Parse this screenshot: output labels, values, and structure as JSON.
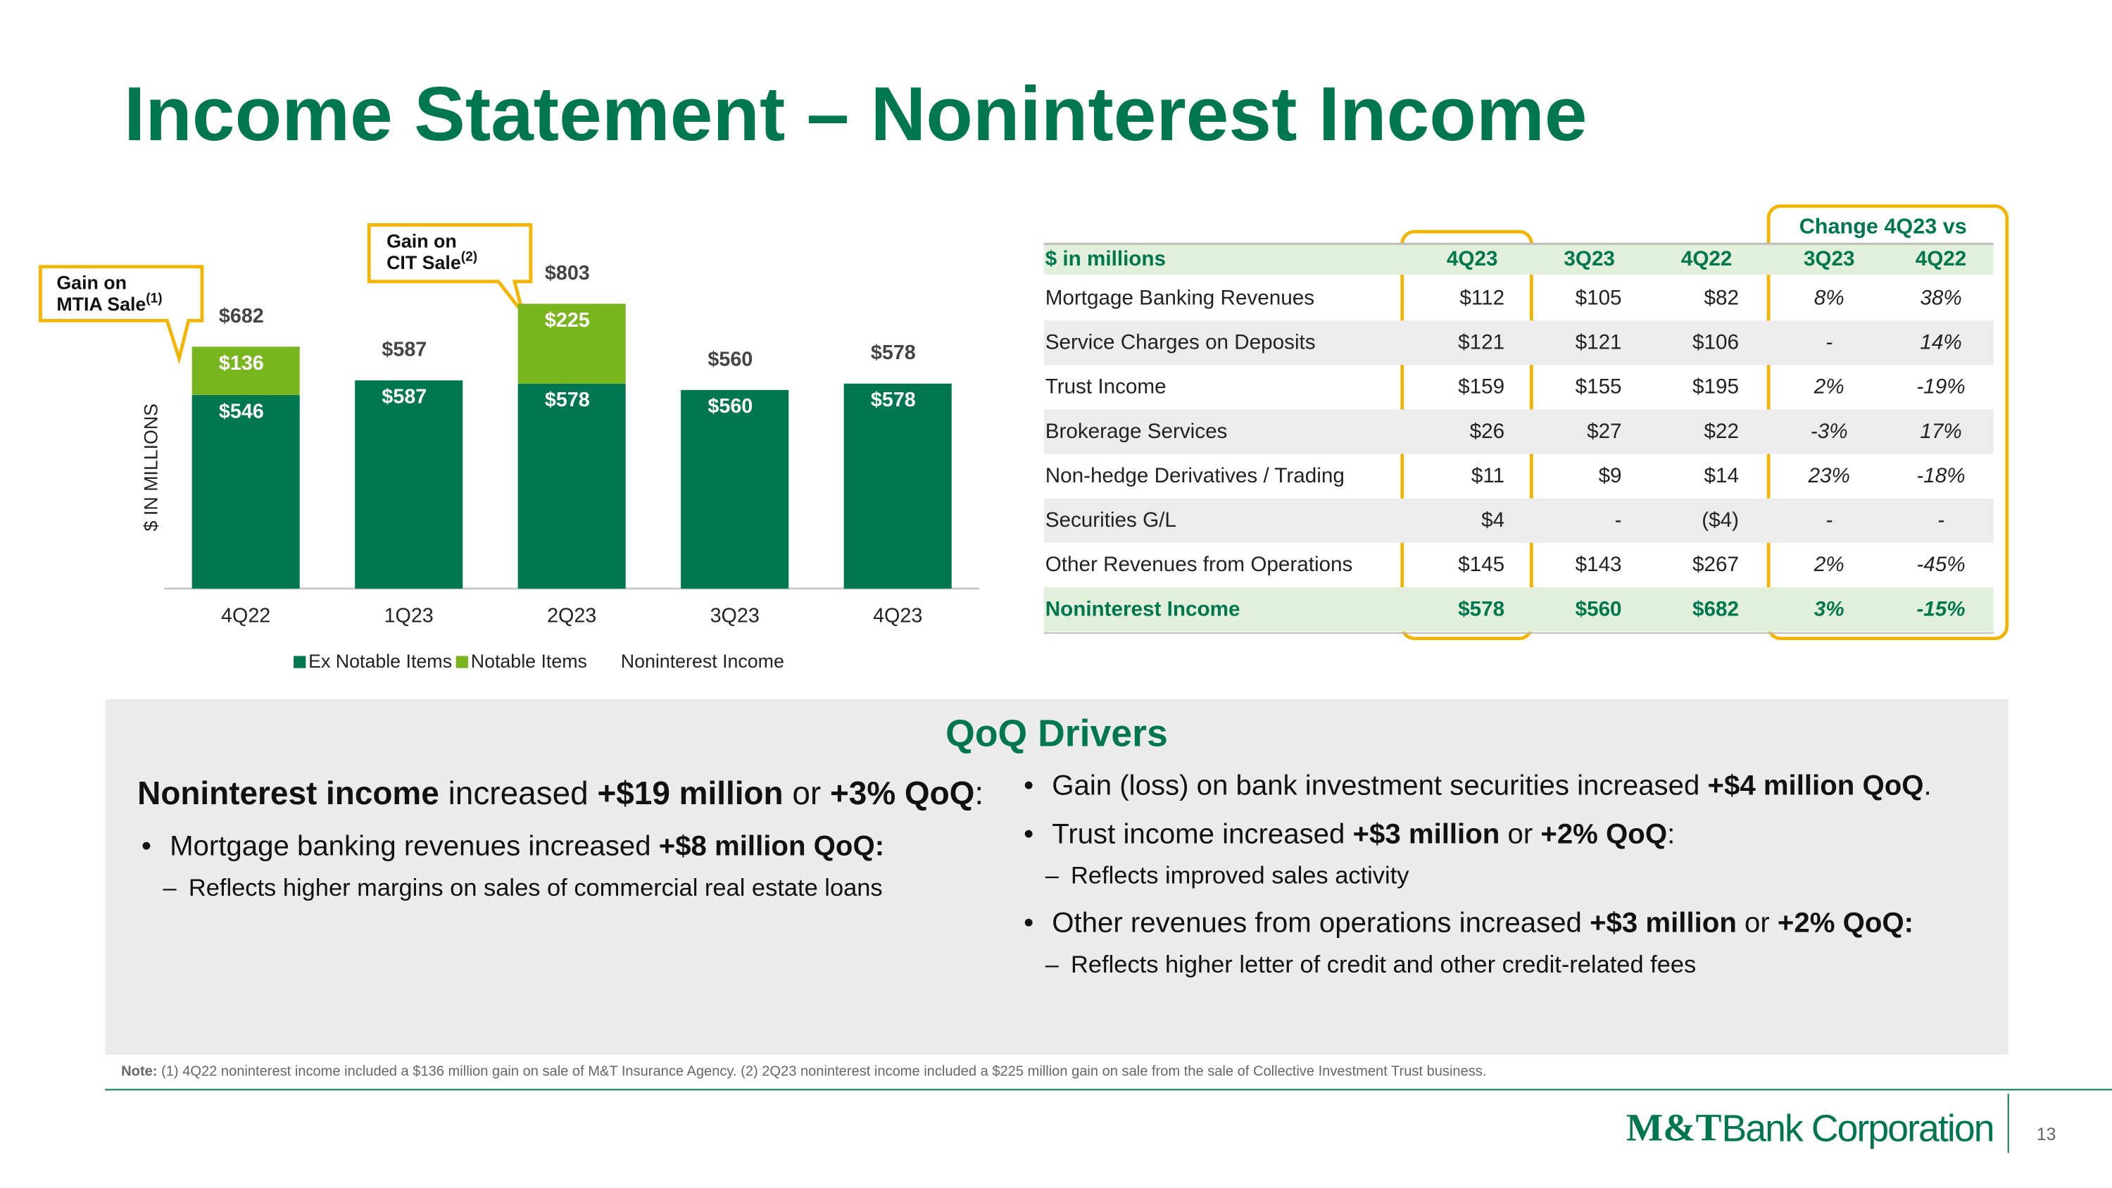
{
  "title": "Income Statement – Noninterest Income",
  "chart_data": {
    "type": "stacked-bar",
    "y_axis_label": "$ IN MILLIONS",
    "categories": [
      "4Q22",
      "1Q23",
      "2Q23",
      "3Q23",
      "4Q23"
    ],
    "series": [
      {
        "name": "Ex Notable Items",
        "color": "#00774f",
        "values": [
          546,
          587,
          578,
          560,
          578
        ],
        "value_labels": [
          "$546",
          "$587",
          "$578",
          "$560",
          "$578"
        ]
      },
      {
        "name": "Notable Items",
        "color": "#79b51c",
        "values": [
          136,
          null,
          225,
          null,
          null
        ],
        "value_labels": [
          "$136",
          null,
          "$225",
          null,
          null
        ]
      }
    ],
    "totals": {
      "name": "Noninterest Income",
      "values": [
        682,
        587,
        803,
        560,
        578
      ],
      "value_labels": [
        "$682",
        "$587",
        "$803",
        "$560",
        "$578"
      ]
    },
    "ylim": [
      0,
      900
    ],
    "annotations": [
      {
        "lines": [
          "Gain on",
          "MTIA Sale"
        ],
        "note": "(1)"
      },
      {
        "lines": [
          "Gain on",
          "CIT Sale"
        ],
        "note": "(2)"
      }
    ]
  },
  "table": {
    "header_group": "Change 4Q23 vs",
    "columns": [
      "$ in millions",
      "4Q23",
      "3Q23",
      "4Q22",
      "3Q23",
      "4Q22"
    ],
    "rows": [
      [
        "Mortgage Banking Revenues",
        "$112",
        "$105",
        "$82",
        "8%",
        "38%"
      ],
      [
        "Service Charges on Deposits",
        "$121",
        "$121",
        "$106",
        "-",
        "14%"
      ],
      [
        "Trust Income",
        "$159",
        "$155",
        "$195",
        "2%",
        "-19%"
      ],
      [
        "Brokerage Services",
        "$26",
        "$27",
        "$22",
        "-3%",
        "17%"
      ],
      [
        "Non-hedge Derivatives / Trading",
        "$11",
        "$9",
        "$14",
        "23%",
        "-18%"
      ],
      [
        "Securities G/L",
        "$4",
        "-",
        "($4)",
        "-",
        "-"
      ],
      [
        "Other Revenues from Operations",
        "$145",
        "$143",
        "$267",
        "2%",
        "-45%"
      ],
      [
        "Noninterest Income",
        "$578",
        "$560",
        "$682",
        "3%",
        "-15%"
      ]
    ]
  },
  "drivers": {
    "title": "QoQ Drivers",
    "left": {
      "lead": [
        {
          "text": "Noninterest income",
          "bold": true
        },
        {
          "text": " increased ",
          "bold": false
        },
        {
          "text": "+$19 million",
          "bold": true
        },
        {
          "text": " or ",
          "bold": false
        },
        {
          "text": "+3% QoQ",
          "bold": true
        },
        {
          "text": ":",
          "bold": false
        }
      ],
      "bullets": [
        {
          "runs": [
            {
              "text": "Mortgage banking revenues increased ",
              "bold": false
            },
            {
              "text": "+$8 million QoQ:",
              "bold": true
            }
          ],
          "subs": [
            "Reflects higher margins on sales of commercial real estate loans"
          ]
        }
      ]
    },
    "right": {
      "bullets": [
        {
          "runs": [
            {
              "text": "Gain (loss) on bank investment securities increased ",
              "bold": false
            },
            {
              "text": "+$4 million QoQ",
              "bold": true
            },
            {
              "text": ".",
              "bold": false
            }
          ],
          "subs": []
        },
        {
          "runs": [
            {
              "text": "Trust income increased ",
              "bold": false
            },
            {
              "text": "+$3 million",
              "bold": true
            },
            {
              "text": " or ",
              "bold": false
            },
            {
              "text": "+2% QoQ",
              "bold": true
            },
            {
              "text": ":",
              "bold": false
            }
          ],
          "subs": [
            "Reflects improved sales activity"
          ]
        },
        {
          "runs": [
            {
              "text": "Other revenues from operations increased ",
              "bold": false
            },
            {
              "text": "+$3 million",
              "bold": true
            },
            {
              "text": " or ",
              "bold": false
            },
            {
              "text": "+2% QoQ:",
              "bold": true
            }
          ],
          "subs": [
            "Reflects higher letter of credit and other credit-related fees"
          ]
        }
      ]
    }
  },
  "note": {
    "label": "Note:",
    "text": " (1) 4Q22 noninterest income included a $136 million gain on sale of M&T Insurance Agency. (2) 2Q23 noninterest income included a $225 million gain on sale from the sale of Collective Investment Trust business."
  },
  "footer": {
    "logo_mark": "M&T",
    "logo_text": "Bank Corporation",
    "page": "13"
  }
}
